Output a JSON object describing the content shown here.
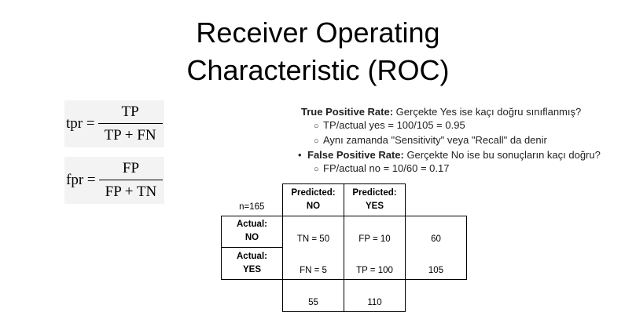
{
  "slide": {
    "title_line1": "Receiver Operating",
    "title_line2": "Characteristic (ROC)"
  },
  "formulas": {
    "tpr": {
      "lhs": "tpr =",
      "numerator": "TP",
      "denominator": "TP + FN"
    },
    "fpr": {
      "lhs": "fpr =",
      "numerator": "FP",
      "denominator": "FP + TN"
    }
  },
  "info": {
    "tpr_heading": "True Positive Rate:",
    "tpr_text": " Gerçekte Yes ise kaçı doğru sınıflanmış?",
    "tpr_sub1": "TP/actual yes = 100/105 = 0.95",
    "tpr_sub2": "Aynı zamanda  \"Sensitivity\" veya \"Recall\" da denir",
    "fpr_heading": "False Positive Rate:",
    "fpr_text": " Gerçekte No ise bu sonuçların kaçı doğru?",
    "fpr_sub1": "FP/actual no = 10/60 = 0.17",
    "bullet": "•",
    "circle": "○"
  },
  "matrix": {
    "n_label": "n=165",
    "pred_no_1": "Predicted:",
    "pred_no_2": "NO",
    "pred_yes_1": "Predicted:",
    "pred_yes_2": "YES",
    "act_no_1": "Actual:",
    "act_no_2": "NO",
    "act_yes_1": "Actual:",
    "act_yes_2": "YES",
    "tn": "TN = 50",
    "fp": "FP = 10",
    "row_no_total": "60",
    "fn": "FN = 5",
    "tp": "TP = 100",
    "row_yes_total": "105",
    "col_no_total": "55",
    "col_yes_total": "110"
  }
}
